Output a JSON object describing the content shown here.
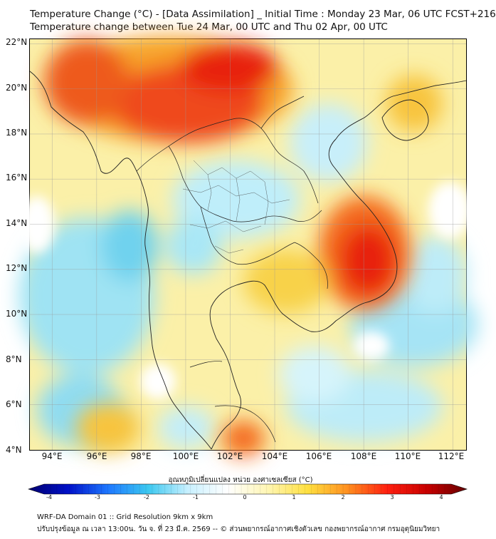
{
  "title_line1": "Temperature Change (°C) - [Data Assimilation] _ Initial Time : Monday 23 Mar, 06 UTC FCST+216",
  "title_line2": "Temperature change between Tue 24 Mar, 00 UTC and Thu 02 Apr, 00 UTC",
  "latitude_labels": [
    "22°N",
    "20°N",
    "18°N",
    "16°N",
    "14°N",
    "12°N",
    "10°N",
    "8°N",
    "6°N",
    "4°N"
  ],
  "longitude_labels": [
    "94°E",
    "96°E",
    "98°E",
    "100°E",
    "102°E",
    "104°E",
    "106°E",
    "108°E",
    "110°E",
    "112°E"
  ],
  "map_extent": {
    "lon_min": 93,
    "lon_max": 112.6,
    "lat_min": 4,
    "lat_max": 22.2
  },
  "colorbar": {
    "title": "อุณหภูมิเปลี่ยนแปลง หน่วย องศาเซลเซียส (°C)",
    "ticks": [
      "-4",
      "-3",
      "-2",
      "-1",
      "0",
      "1",
      "2",
      "3",
      "4"
    ],
    "min": -4,
    "max": 4,
    "colors": [
      "#000070",
      "#0010c8",
      "#1e78ff",
      "#3cc8f0",
      "#c8f0ff",
      "#ffffff",
      "#fff6b4",
      "#ffe040",
      "#ff9020",
      "#ff2010",
      "#c80000",
      "#640000"
    ]
  },
  "footer_line1": "WRF-DA Domain 01 :: Grid Resolution 9km x 9km",
  "footer_line2": "ปรับปรุงข้อมูล ณ เวลา 13:00น. วัน จ. ที่ 23 มี.ค. 2569 -- © ส่วนพยากรณ์อากาศเชิงตัวเลข กองพยากรณ์อากาศ กรมอุตุนิยมวิทยา"
}
